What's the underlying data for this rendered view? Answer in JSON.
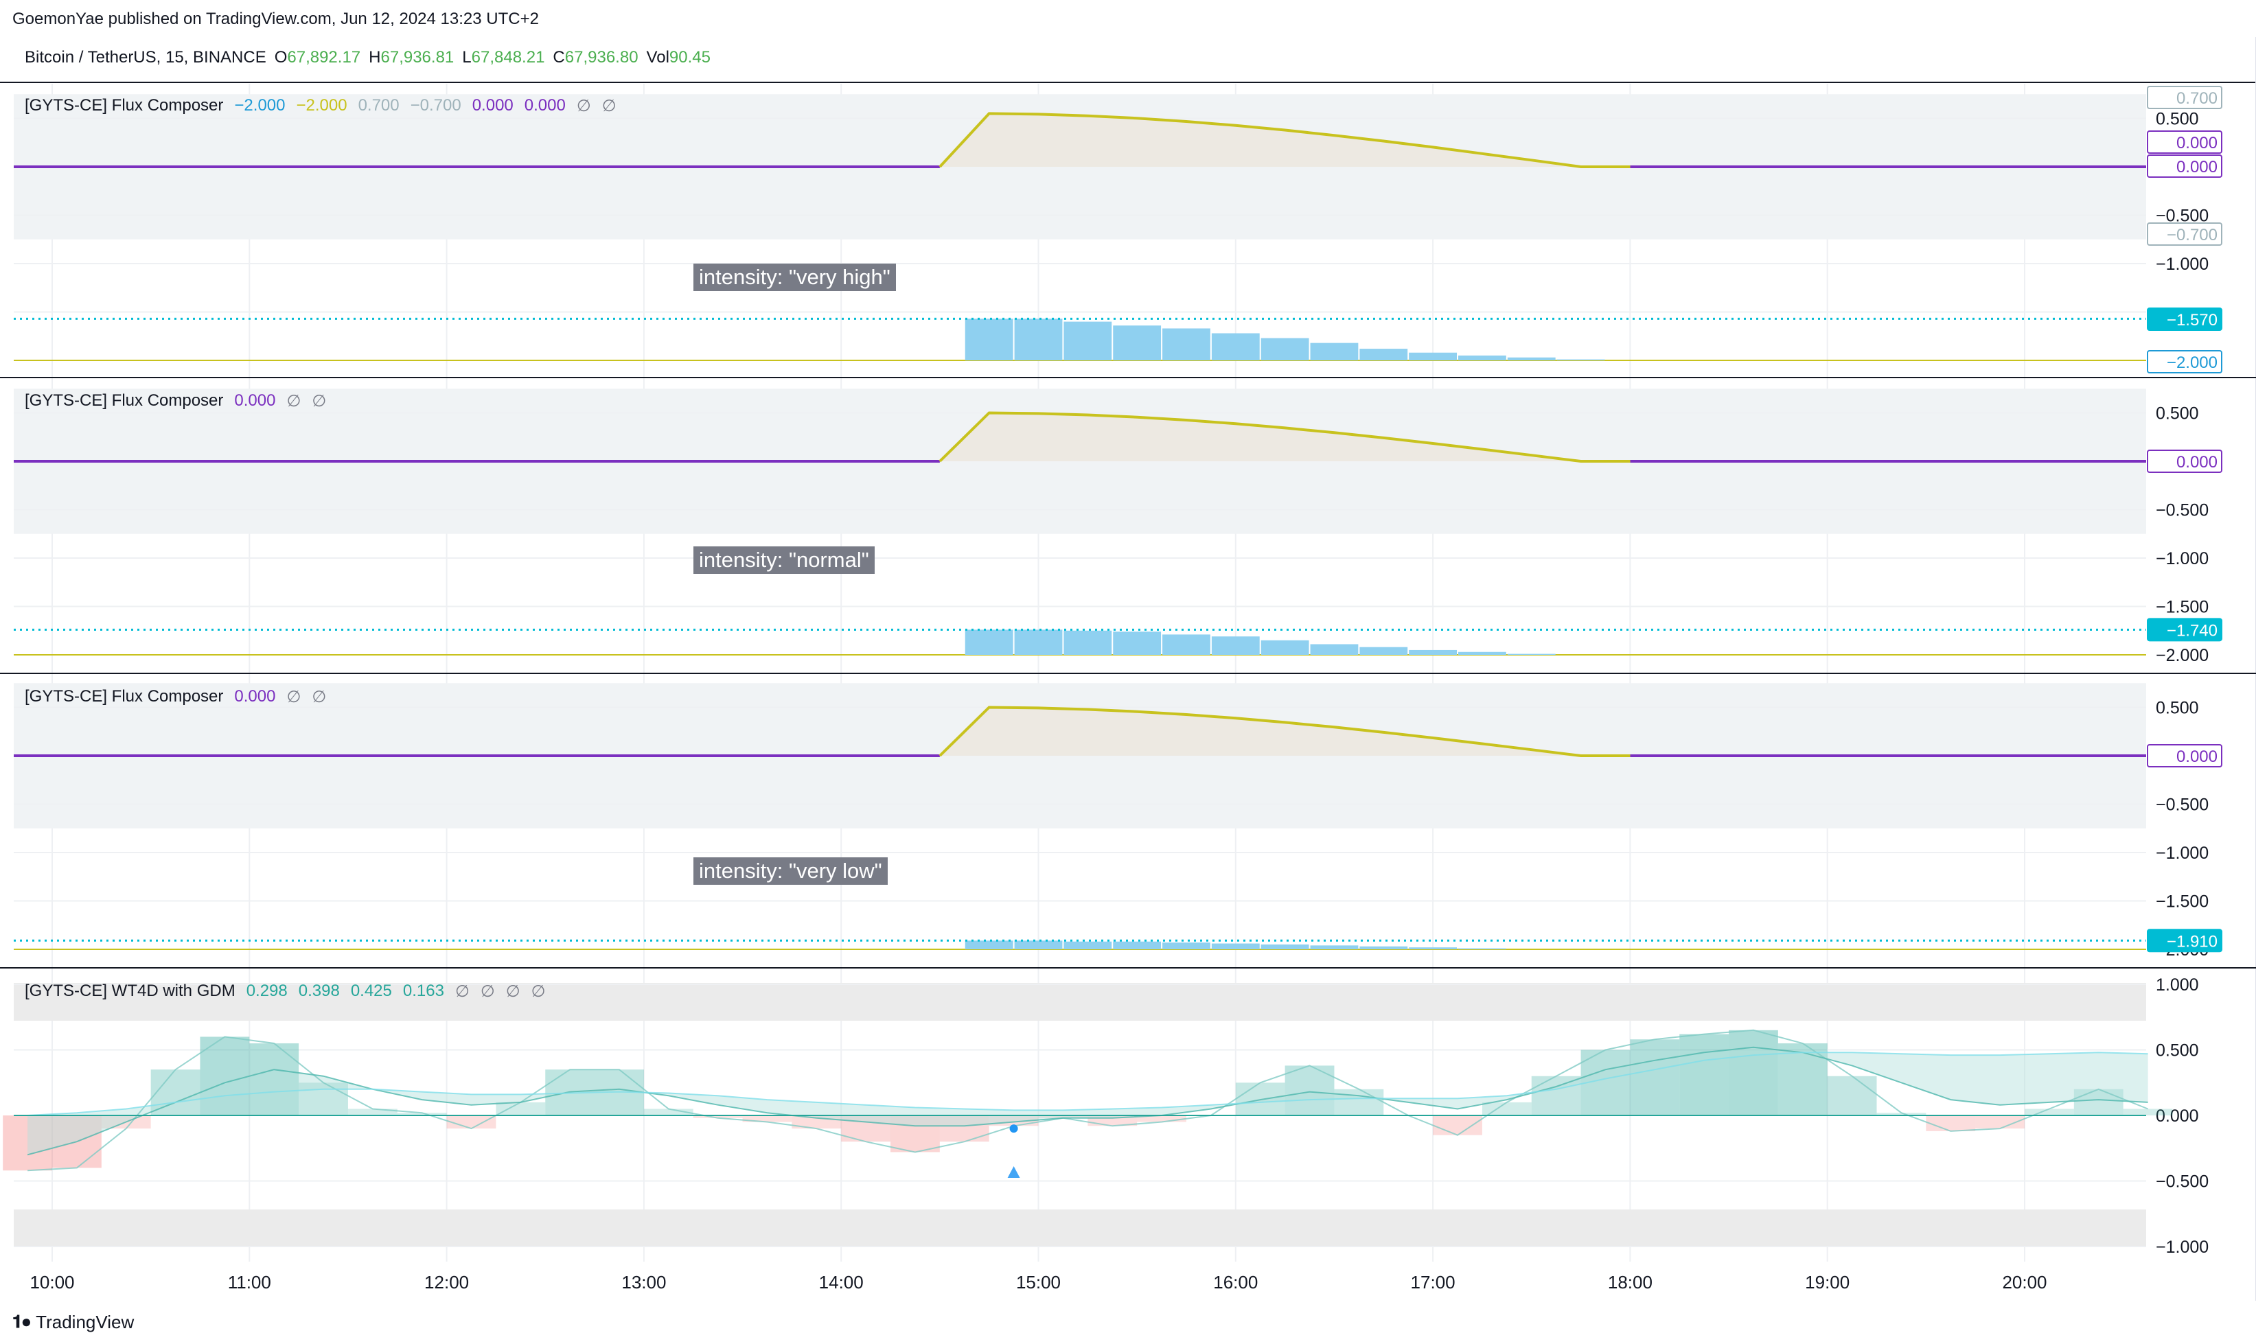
{
  "header": {
    "published": "GoemonYae published on TradingView.com, Jun 12, 2024 13:23 UTC+2"
  },
  "symbol": {
    "name": "Bitcoin / TetherUS, 15, BINANCE",
    "o_label": "O",
    "o": "67,892.17",
    "h_label": "H",
    "h": "67,936.81",
    "l_label": "L",
    "l": "67,848.21",
    "c_label": "C",
    "c": "67,936.80",
    "vol_label": "Vol",
    "vol": "90.45"
  },
  "panes": [
    {
      "title": "[GYTS-CE] Flux Composer",
      "legend_values": [
        {
          "text": "−2.000",
          "color": "#1e9ad6"
        },
        {
          "text": "−2.000",
          "color": "#c8c21e"
        },
        {
          "text": "0.700",
          "color": "#9fb3ba"
        },
        {
          "text": "−0.700",
          "color": "#9fb3ba"
        },
        {
          "text": "0.000",
          "color": "#7b2fbf"
        },
        {
          "text": "0.000",
          "color": "#7b2fbf"
        }
      ],
      "legend_empties": [
        "∅",
        "∅"
      ],
      "intensity": "intensity: \"very high\"",
      "axis_ticks": [
        "0.500",
        "−0.500",
        "−1.000"
      ],
      "price_tags": [
        {
          "text": "0.700",
          "style": "outline",
          "color": "#9fb3ba"
        },
        {
          "text": "0.000",
          "style": "outline",
          "color": "#7b2fbf"
        },
        {
          "text": "0.000",
          "style": "outline",
          "color": "#7b2fbf"
        },
        {
          "text": "−0.700",
          "style": "outline",
          "color": "#9fb3ba"
        },
        {
          "text": "−1.570",
          "style": "filled",
          "color": "#00bcd4"
        },
        {
          "text": "−2.000",
          "style": "outline",
          "color": "#1e9ad6"
        }
      ],
      "dotted_level": -1.57,
      "wave_peak": 0.55,
      "bars": [
        -1.57,
        -1.57,
        -1.6,
        -1.64,
        -1.67,
        -1.72,
        -1.77,
        -1.82,
        -1.88,
        -1.92,
        -1.95,
        -1.97,
        -1.99
      ]
    },
    {
      "title": "[GYTS-CE] Flux Composer",
      "legend_values": [
        {
          "text": "0.000",
          "color": "#7b2fbf"
        }
      ],
      "legend_empties": [
        "∅",
        "∅"
      ],
      "intensity": "intensity: \"normal\"",
      "axis_ticks": [
        "0.500",
        "−0.500",
        "−1.000",
        "−1.500",
        "−2.000"
      ],
      "price_tags": [
        {
          "text": "0.000",
          "style": "outline",
          "color": "#7b2fbf"
        },
        {
          "text": "−1.740",
          "style": "filled",
          "color": "#00bcd4"
        }
      ],
      "dotted_level": -1.74,
      "wave_peak": 0.5,
      "bars": [
        -1.74,
        -1.74,
        -1.75,
        -1.76,
        -1.79,
        -1.81,
        -1.85,
        -1.89,
        -1.92,
        -1.95,
        -1.97,
        -1.99,
        -2.0
      ]
    },
    {
      "title": "[GYTS-CE] Flux Composer",
      "legend_values": [
        {
          "text": "0.000",
          "color": "#7b2fbf"
        }
      ],
      "legend_empties": [
        "∅",
        "∅"
      ],
      "intensity": "intensity: \"very low\"",
      "axis_ticks": [
        "0.500",
        "−0.500",
        "−1.000",
        "−1.500",
        "−2.000"
      ],
      "price_tags": [
        {
          "text": "0.000",
          "style": "outline",
          "color": "#7b2fbf"
        },
        {
          "text": "−1.910",
          "style": "filled",
          "color": "#00bcd4"
        }
      ],
      "dotted_level": -1.91,
      "wave_peak": 0.5,
      "bars": [
        -1.91,
        -1.91,
        -1.92,
        -1.92,
        -1.93,
        -1.94,
        -1.95,
        -1.96,
        -1.97,
        -1.98,
        -1.99
      ]
    },
    {
      "title": "[GYTS-CE] WT4D with GDM",
      "legend_values": [
        {
          "text": "0.298",
          "color": "#26a69a"
        },
        {
          "text": "0.398",
          "color": "#26a69a"
        },
        {
          "text": "0.425",
          "color": "#26a69a"
        },
        {
          "text": "0.163",
          "color": "#26a69a"
        }
      ],
      "legend_empties": [
        "∅",
        "∅",
        "∅",
        "∅"
      ],
      "axis_ticks": [
        "1.000",
        "0.500",
        "0.000",
        "−0.500",
        "−1.000"
      ]
    }
  ],
  "time_axis": [
    "10:00",
    "11:00",
    "12:00",
    "13:00",
    "14:00",
    "15:00",
    "16:00",
    "17:00",
    "18:00",
    "19:00",
    "20:00"
  ],
  "chart_data": {
    "type": "area",
    "title": "",
    "x": [
      "9:45",
      "10:00",
      "10:15",
      "10:30",
      "10:45",
      "11:00",
      "11:15",
      "11:30",
      "11:45",
      "12:00",
      "12:15",
      "12:30",
      "12:45",
      "13:00",
      "13:15",
      "13:30",
      "13:45",
      "14:00",
      "14:15",
      "14:30",
      "14:45",
      "15:00",
      "15:15",
      "15:30",
      "15:45",
      "16:00",
      "16:15",
      "16:30",
      "16:45",
      "17:00",
      "17:15",
      "17:30",
      "17:45",
      "18:00",
      "18:15",
      "18:30",
      "18:45",
      "19:00",
      "19:15",
      "19:30",
      "19:45",
      "20:00",
      "20:15",
      "20:30"
    ],
    "series": [
      {
        "values": [
          -0.42,
          -0.4,
          -0.1,
          0.35,
          0.6,
          0.55,
          0.25,
          0.05,
          0.02,
          -0.1,
          0.1,
          0.35,
          0.35,
          0.05,
          -0.02,
          -0.05,
          -0.1,
          -0.2,
          -0.28,
          -0.2,
          -0.08,
          -0.02,
          -0.08,
          -0.05,
          0.0,
          0.25,
          0.38,
          0.2,
          0.0,
          -0.15,
          0.1,
          0.3,
          0.5,
          0.58,
          0.62,
          0.65,
          0.55,
          0.3,
          0.02,
          -0.12,
          -0.1,
          0.05,
          0.2,
          0.05
        ]
      },
      {
        "values": [
          -0.3,
          -0.2,
          -0.05,
          0.1,
          0.25,
          0.35,
          0.3,
          0.2,
          0.12,
          0.08,
          0.1,
          0.18,
          0.2,
          0.15,
          0.08,
          0.02,
          -0.02,
          -0.05,
          -0.08,
          -0.08,
          -0.05,
          -0.02,
          -0.02,
          0.0,
          0.05,
          0.12,
          0.18,
          0.15,
          0.1,
          0.05,
          0.12,
          0.22,
          0.35,
          0.42,
          0.48,
          0.52,
          0.48,
          0.38,
          0.25,
          0.12,
          0.08,
          0.1,
          0.12,
          0.1
        ]
      },
      {
        "values": [
          0.0,
          0.02,
          0.05,
          0.1,
          0.15,
          0.18,
          0.2,
          0.2,
          0.18,
          0.16,
          0.16,
          0.17,
          0.18,
          0.17,
          0.15,
          0.12,
          0.1,
          0.08,
          0.06,
          0.05,
          0.04,
          0.04,
          0.05,
          0.06,
          0.08,
          0.1,
          0.12,
          0.13,
          0.13,
          0.13,
          0.15,
          0.2,
          0.28,
          0.35,
          0.42,
          0.46,
          0.48,
          0.48,
          0.47,
          0.46,
          0.46,
          0.47,
          0.48,
          0.47
        ]
      }
    ],
    "ylim": [
      -1.0,
      1.0
    ],
    "markers": [
      {
        "x": "14:45",
        "y": -0.1,
        "shape": "dot"
      },
      {
        "x": "14:45",
        "y": -0.44,
        "shape": "triangle-up"
      }
    ]
  },
  "footer": {
    "brand": "TradingView"
  },
  "colors": {
    "purple": "#7b2fbf",
    "olive": "#c8c21e",
    "brown": "#a07a5a",
    "bar_blue": "#8fd0f0",
    "cyan": "#00bcd4",
    "teal": "#26a69a",
    "red": "#ef5350",
    "band": "#f0f3f5"
  }
}
